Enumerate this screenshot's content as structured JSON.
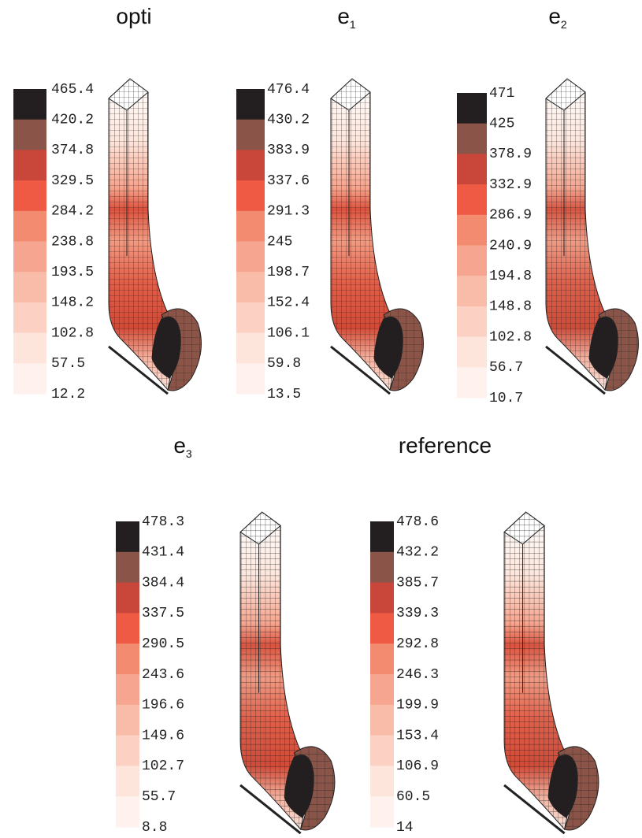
{
  "panels": [
    {
      "title": "opti",
      "labels": [
        465.4,
        420.2,
        374.8,
        329.5,
        284.2,
        238.8,
        193.5,
        148.2,
        102.8,
        57.5,
        12.2
      ]
    },
    {
      "title": "e",
      "subscript": "1",
      "labels": [
        476.4,
        430.2,
        383.9,
        337.6,
        291.3,
        245,
        198.7,
        152.4,
        106.1,
        59.8,
        13.5
      ]
    },
    {
      "title": "e",
      "subscript": "2",
      "labels": [
        471,
        425,
        378.9,
        332.9,
        286.9,
        240.9,
        194.8,
        148.8,
        102.8,
        56.7,
        10.7
      ]
    },
    {
      "title": "e",
      "subscript": "3",
      "labels": [
        478.3,
        431.4,
        384.4,
        337.5,
        290.5,
        243.6,
        196.6,
        149.6,
        102.7,
        55.7,
        8.8
      ]
    },
    {
      "title": "reference",
      "labels": [
        478.6,
        432.2,
        385.7,
        339.3,
        292.8,
        246.3,
        199.9,
        153.4,
        106.9,
        60.5,
        14
      ]
    }
  ]
}
